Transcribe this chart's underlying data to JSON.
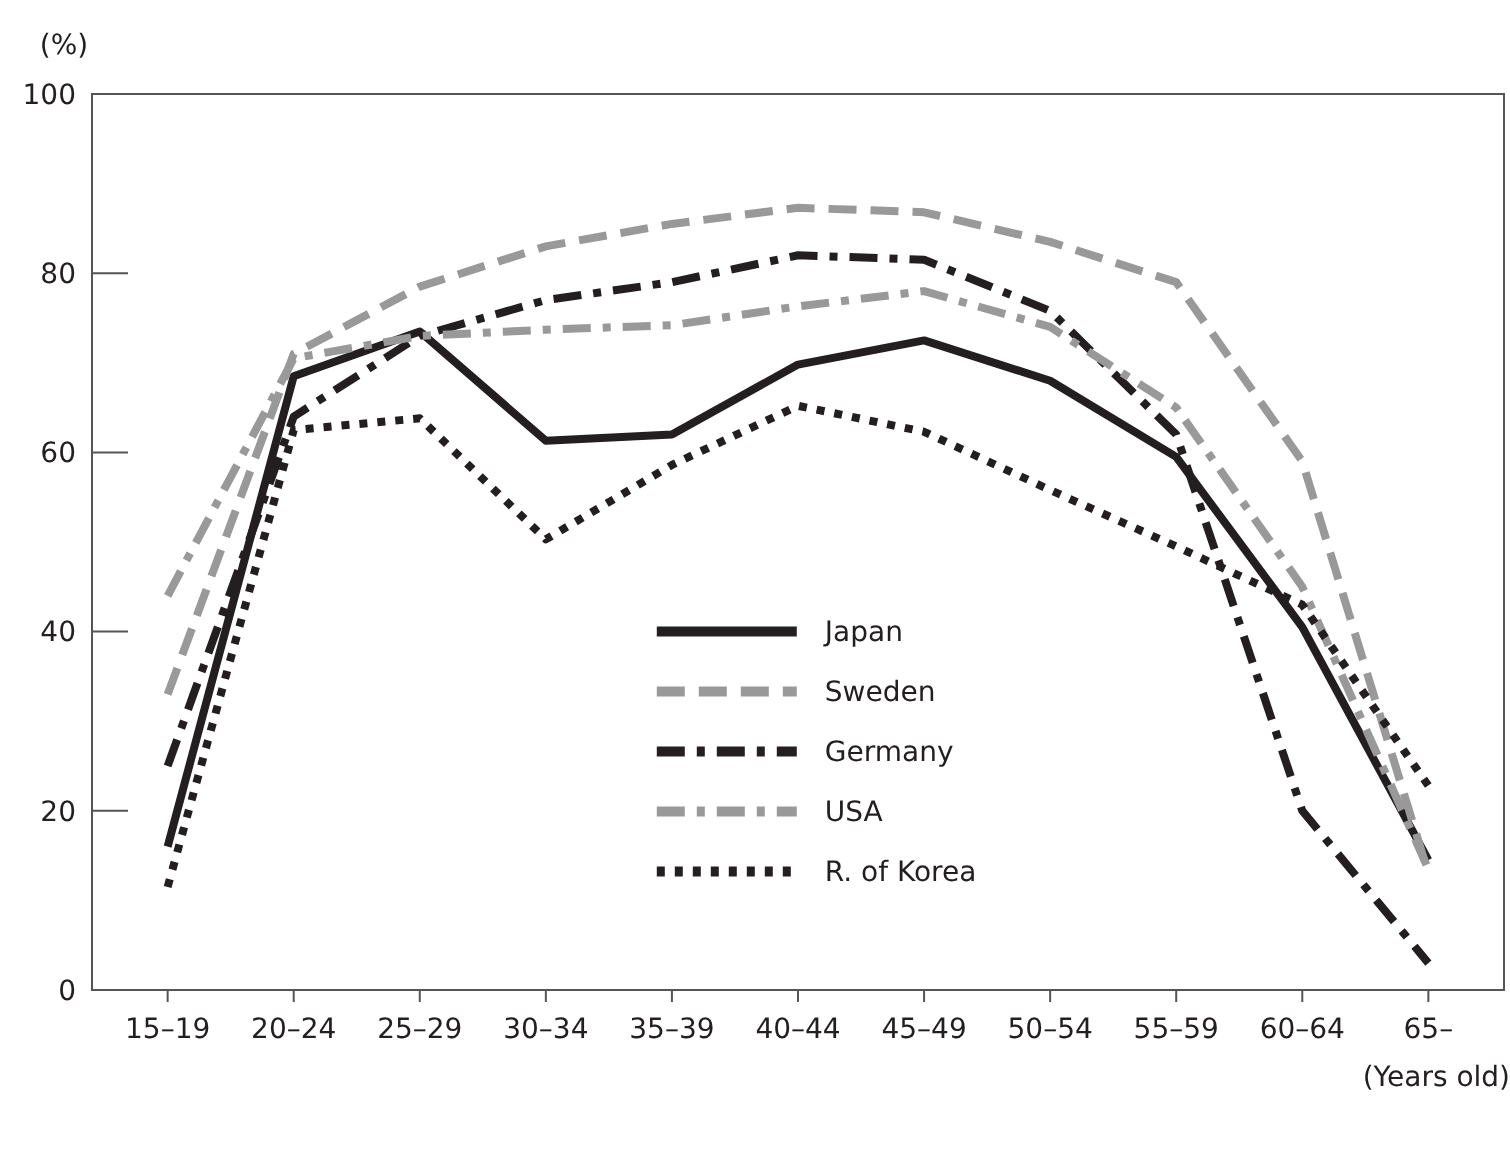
{
  "chart_data": {
    "type": "line",
    "ylabel": "(%)",
    "xlabel": "(Years old)",
    "categories": [
      "15–19",
      "20–24",
      "25–29",
      "30–34",
      "35–39",
      "40–44",
      "45–49",
      "50–54",
      "55–59",
      "60–64",
      "65–"
    ],
    "ylim": [
      0,
      100
    ],
    "yticks": [
      0,
      20,
      40,
      60,
      80,
      100
    ],
    "grid": false,
    "legend": "bottom",
    "marker": "none",
    "series": [
      {
        "name": "Japan",
        "color": "#231f20",
        "line_style": "solid",
        "values": [
          16,
          68.5,
          73.5,
          61.3,
          62,
          69.8,
          72.5,
          68,
          59.5,
          40.5,
          14.5
        ]
      },
      {
        "name": "Sweden",
        "color": "#999999",
        "line_style": "dashed",
        "values": [
          33,
          71,
          78.5,
          83,
          85.5,
          87.3,
          86.8,
          83.5,
          79,
          59,
          13
        ]
      },
      {
        "name": "Germany",
        "color": "#231f20",
        "line_style": "dashdot",
        "values": [
          25,
          64,
          73,
          77,
          79,
          82,
          81.5,
          75.8,
          62,
          20,
          3
        ]
      },
      {
        "name": "USA",
        "color": "#999999",
        "line_style": "dashdot",
        "values": [
          44,
          70.5,
          73,
          73.7,
          74.2,
          76.3,
          78,
          74,
          65,
          45,
          13.5
        ]
      },
      {
        "name": "R. of Korea",
        "color": "#231f20",
        "line_style": "dotted",
        "values": [
          11.5,
          62.5,
          63.8,
          50.3,
          58.6,
          65.2,
          62.3,
          55.8,
          49.5,
          43,
          22.8
        ]
      }
    ]
  }
}
